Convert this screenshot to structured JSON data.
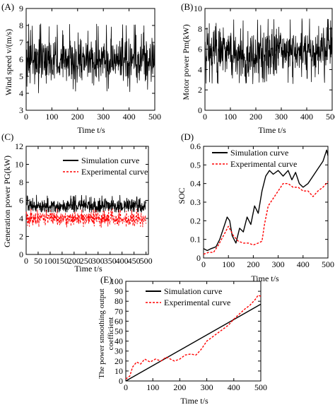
{
  "figure": {
    "panels": [
      {
        "id": "A",
        "label": "(A)",
        "xlabel": "Time t/s",
        "ylabel": "Wind speed v/(m/s)"
      },
      {
        "id": "B",
        "label": "(B)",
        "xlabel": "Time t/s",
        "ylabel": "Motor power Pm(kW)"
      },
      {
        "id": "C",
        "label": "(C)",
        "xlabel": "Time t/s",
        "ylabel": "Generation power PG(kW)"
      },
      {
        "id": "D",
        "label": "(D)",
        "xlabel": "Time t/s",
        "ylabel": "SOC"
      },
      {
        "id": "E",
        "label": "(E)",
        "xlabel": "Time t/s",
        "ylabel": "The power smoothing output coefficient"
      }
    ]
  },
  "chart_data": [
    {
      "id": "A",
      "type": "line",
      "title": "",
      "xlabel": "Time t/s",
      "ylabel": "Wind speed v/(m/s)",
      "xlim": [
        0,
        500
      ],
      "ylim": [
        3,
        9
      ],
      "xticks": [
        0,
        100,
        200,
        300,
        400,
        500
      ],
      "yticks": [
        3,
        4,
        5,
        6,
        7,
        8,
        9
      ],
      "noise": {
        "mean": 6.0,
        "min": 4.0,
        "max": 8.1
      },
      "color": "#000000"
    },
    {
      "id": "B",
      "type": "line",
      "title": "",
      "xlabel": "Time t/s",
      "ylabel": "Motor power Pm(kW)",
      "xlim": [
        0,
        500
      ],
      "ylim": [
        0,
        10
      ],
      "xticks": [
        0,
        100,
        200,
        300,
        400,
        500
      ],
      "yticks": [
        0,
        2,
        4,
        6,
        8,
        10
      ],
      "noise": {
        "mean": 5.6,
        "min": 2.6,
        "max": 9.0
      },
      "color": "#000000"
    },
    {
      "id": "C",
      "type": "line",
      "title": "",
      "xlabel": "Time t/s",
      "ylabel": "Generation power PG(kW)",
      "xlim": [
        0,
        510
      ],
      "ylim": [
        0,
        12
      ],
      "xticks": [
        0,
        50,
        100,
        150,
        200,
        250,
        300,
        350,
        400,
        450,
        500
      ],
      "yticks": [
        0,
        2,
        4,
        6,
        8,
        10,
        12
      ],
      "legend_position": "top-right",
      "series": [
        {
          "name": "Simulation curve",
          "color": "#000000",
          "style": "solid",
          "noise": {
            "mean": 5.4,
            "min": 4.7,
            "max": 6.6
          }
        },
        {
          "name": "Experimental curve",
          "color": "#ff0000",
          "style": "dashed",
          "noise": {
            "mean": 4.0,
            "min": 3.0,
            "max": 5.1
          }
        }
      ]
    },
    {
      "id": "D",
      "type": "line",
      "title": "",
      "xlabel": "Time t/s",
      "ylabel": "SOC",
      "xlim": [
        0,
        500
      ],
      "ylim": [
        0,
        0.6
      ],
      "xticks": [
        0,
        100,
        200,
        300,
        400,
        500
      ],
      "yticks": [
        0,
        0.1,
        0.2,
        0.3,
        0.4,
        0.5,
        0.6
      ],
      "legend_position": "top-right",
      "series": [
        {
          "name": "Simulation curve",
          "color": "#000000",
          "style": "solid",
          "x": [
            0,
            15,
            30,
            50,
            65,
            80,
            95,
            105,
            115,
            130,
            145,
            160,
            175,
            190,
            205,
            220,
            235,
            250,
            265,
            280,
            300,
            320,
            340,
            355,
            370,
            385,
            400,
            420,
            440,
            460,
            480,
            495,
            500
          ],
          "y": [
            0.05,
            0.04,
            0.05,
            0.06,
            0.1,
            0.16,
            0.22,
            0.2,
            0.12,
            0.08,
            0.16,
            0.14,
            0.22,
            0.18,
            0.28,
            0.24,
            0.36,
            0.44,
            0.47,
            0.45,
            0.47,
            0.44,
            0.47,
            0.42,
            0.46,
            0.4,
            0.38,
            0.4,
            0.44,
            0.48,
            0.52,
            0.58,
            0.55
          ]
        },
        {
          "name": "Experimental curve",
          "color": "#ff0000",
          "style": "dashed",
          "x": [
            0,
            20,
            40,
            60,
            80,
            100,
            120,
            140,
            160,
            180,
            200,
            220,
            235,
            245,
            260,
            280,
            300,
            320,
            340,
            360,
            380,
            400,
            420,
            440,
            460,
            480,
            500
          ],
          "y": [
            0.02,
            0.03,
            0.03,
            0.07,
            0.12,
            0.17,
            0.12,
            0.09,
            0.08,
            0.08,
            0.07,
            0.08,
            0.09,
            0.18,
            0.28,
            0.32,
            0.36,
            0.4,
            0.4,
            0.38,
            0.38,
            0.36,
            0.36,
            0.33,
            0.36,
            0.38,
            0.41
          ]
        }
      ]
    },
    {
      "id": "E",
      "type": "line",
      "title": "",
      "xlabel": "Time t/s",
      "ylabel": "The power smoothing output coefficient",
      "xlim": [
        0,
        500
      ],
      "ylim": [
        0,
        100
      ],
      "xticks": [
        0,
        100,
        200,
        300,
        400,
        500
      ],
      "yticks": [
        0,
        10,
        20,
        30,
        40,
        50,
        60,
        70,
        80,
        90,
        100
      ],
      "legend_position": "top-left",
      "series": [
        {
          "name": "Simulation curve",
          "color": "#000000",
          "style": "solid",
          "x": [
            0,
            500
          ],
          "y": [
            0,
            77
          ]
        },
        {
          "name": "Experimental curve",
          "color": "#ff0000",
          "style": "dashed",
          "x": [
            0,
            15,
            25,
            40,
            55,
            70,
            90,
            110,
            130,
            150,
            165,
            180,
            200,
            220,
            240,
            260,
            280,
            300,
            320,
            340,
            360,
            380,
            400,
            420,
            440,
            460,
            480,
            490,
            500
          ],
          "y": [
            2,
            5,
            14,
            19,
            17,
            22,
            19,
            22,
            20,
            24,
            22,
            20,
            22,
            26,
            27,
            26,
            32,
            40,
            44,
            48,
            52,
            56,
            62,
            67,
            72,
            76,
            82,
            86,
            85
          ]
        }
      ]
    }
  ]
}
